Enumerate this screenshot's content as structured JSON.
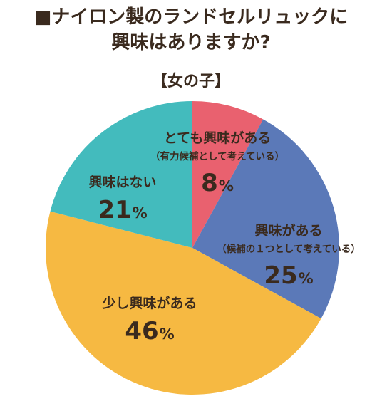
{
  "title_line1": "■ナイロン製のランドセルリュックに",
  "title_line2": "興味はありますか?",
  "subtitle": "【女の子】",
  "chart_data": {
    "type": "pie",
    "start": "12 o'clock",
    "direction": "clockwise",
    "slices": [
      {
        "label": "とても興味がある",
        "note": "（有力候補として考えている）",
        "value": 8,
        "display": "8",
        "unit": "%",
        "color": "#e9616f"
      },
      {
        "label": "興味がある",
        "note": "（候補の１つとして考えている）",
        "value": 25,
        "display": "25",
        "unit": "%",
        "color": "#5b79b8"
      },
      {
        "label": "少し興味がある",
        "note": "",
        "value": 46,
        "display": "46",
        "unit": "%",
        "color": "#f6b942"
      },
      {
        "label": "興味はない",
        "note": "",
        "value": 21,
        "display": "21",
        "unit": "%",
        "color": "#43bbbd"
      }
    ]
  }
}
